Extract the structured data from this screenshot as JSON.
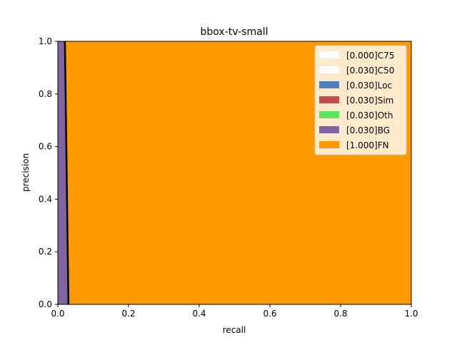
{
  "chart_data": {
    "type": "area",
    "title": "bbox-tv-small",
    "xlabel": "recall",
    "ylabel": "precision",
    "xlim": [
      0,
      1
    ],
    "ylim": [
      0,
      1
    ],
    "x_ticks": [
      "0.0",
      "0.2",
      "0.4",
      "0.6",
      "0.8",
      "1.0"
    ],
    "y_ticks": [
      "0.0",
      "0.2",
      "0.4",
      "0.6",
      "0.8",
      "1.0"
    ],
    "grid": false,
    "legend_position": "upper right",
    "series": [
      {
        "name": "[0.000]C75",
        "color": "#ffffff",
        "x": [
          0,
          0.018,
          0.018,
          0
        ],
        "y": [
          1,
          1,
          0,
          0
        ]
      },
      {
        "name": "[0.030]C50",
        "color": "#ffffff",
        "x": [
          0,
          0.02,
          0.03,
          0
        ],
        "y": [
          1,
          1,
          0,
          0
        ]
      },
      {
        "name": "[0.030]Loc",
        "color": "#4f81bd",
        "x": [
          0,
          0.02,
          0.03,
          0
        ],
        "y": [
          1,
          1,
          0,
          0
        ]
      },
      {
        "name": "[0.030]Sim",
        "color": "#c0504d",
        "x": [
          0,
          0.02,
          0.03,
          0
        ],
        "y": [
          1,
          1,
          0,
          0
        ]
      },
      {
        "name": "[0.030]Oth",
        "color": "#5fe65f",
        "x": [
          0,
          0.02,
          0.03,
          0
        ],
        "y": [
          1,
          1,
          0,
          0
        ]
      },
      {
        "name": "[0.030]BG",
        "color": "#8064a2",
        "x": [
          0,
          0.02,
          0.03,
          0
        ],
        "y": [
          1,
          1,
          0,
          0
        ]
      },
      {
        "name": "[1.000]FN",
        "color": "#ff9900",
        "x": [
          0.02,
          1,
          1,
          0.03
        ],
        "y": [
          1,
          1,
          0,
          0
        ]
      }
    ],
    "pr_curve": {
      "x": [
        0.02,
        0.03
      ],
      "y": [
        1,
        0
      ],
      "color": "#000000"
    }
  }
}
